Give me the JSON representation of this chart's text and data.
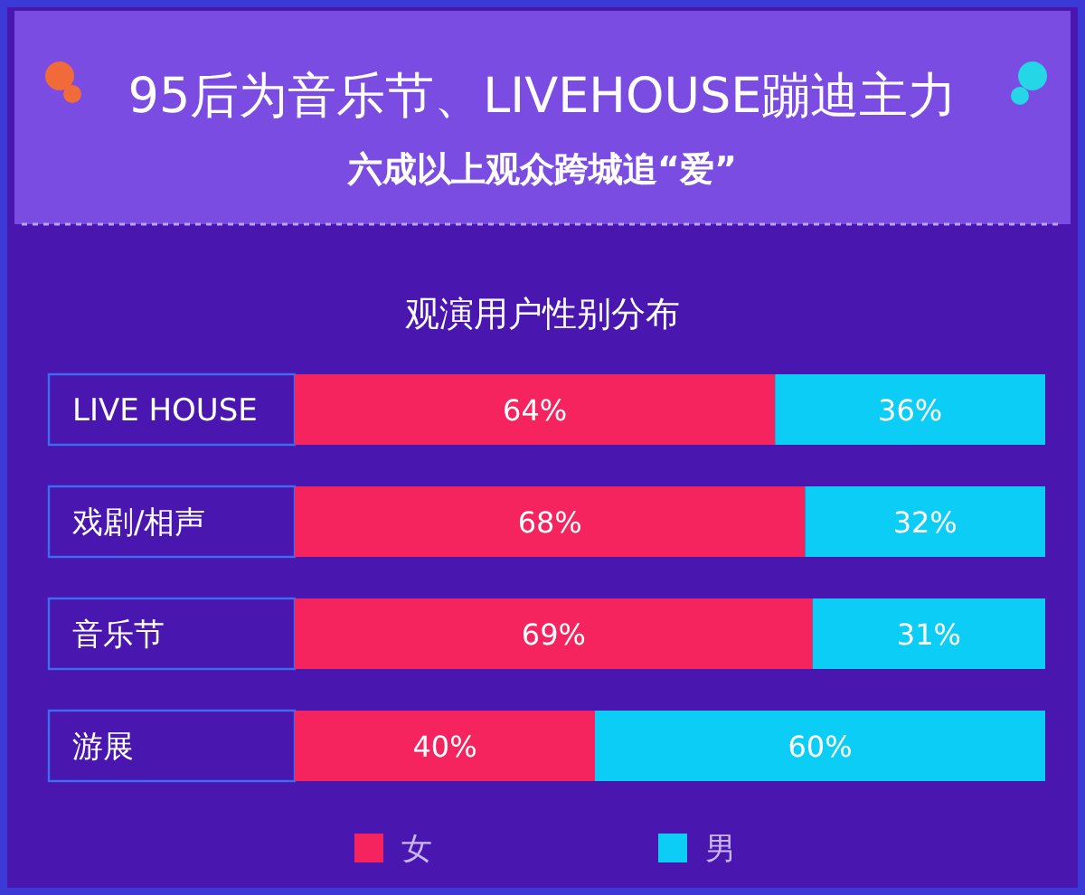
{
  "chart_data": {
    "type": "bar",
    "orientation": "horizontal",
    "stacked": true,
    "title": "95后为音乐节、LIVEHOUSE蹦迪主力",
    "subtitle": "六成以上观众跨城追“爱”",
    "annotations": [
      "观演用户性别分布"
    ],
    "categories": [
      "LIVE HOUSE",
      "戏剧/相声",
      "音乐节",
      "游展"
    ],
    "series": [
      {
        "name": "女",
        "color": "#f5245e",
        "values": [
          64,
          68,
          69,
          40
        ],
        "value_labels": [
          "64%",
          "68%",
          "69%",
          "40%"
        ]
      },
      {
        "name": "男",
        "color": "#0bcdf5",
        "values": [
          36,
          32,
          31,
          60
        ],
        "value_labels": [
          "36%",
          "32%",
          "31%",
          "60%"
        ]
      }
    ],
    "legend": "bottom"
  }
}
